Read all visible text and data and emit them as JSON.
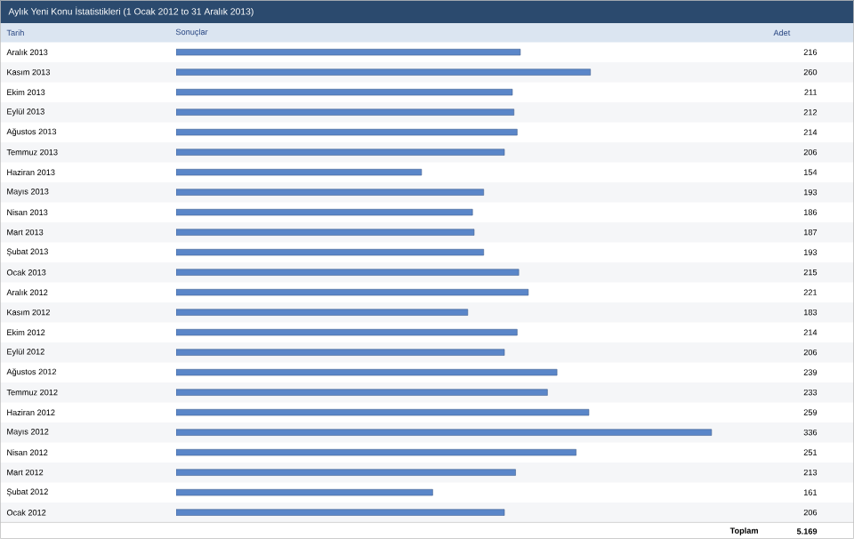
{
  "chart_data": {
    "type": "bar",
    "orientation": "horizontal",
    "title": "Aylık Yeni Konu İstatistikleri (1 Ocak 2012 to 31 Aralık 2013)",
    "annotations": [
      "Tarih",
      "Sonuçlar",
      "Adet",
      "Toplam",
      "5.169"
    ],
    "categories": [
      "Aralık 2013",
      "Kasım 2013",
      "Ekim 2013",
      "Eylül 2013",
      "Ağustos 2013",
      "Temmuz 2013",
      "Haziran 2013",
      "Mayıs 2013",
      "Nisan 2013",
      "Mart 2013",
      "Şubat 2013",
      "Ocak 2013",
      "Aralık 2012",
      "Kasım 2012",
      "Ekim 2012",
      "Eylül 2012",
      "Ağustos 2012",
      "Temmuz 2012",
      "Haziran 2012",
      "Mayıs 2012",
      "Nisan 2012",
      "Mart 2012",
      "Şubat 2012",
      "Ocak 2012"
    ],
    "values": [
      216,
      260,
      211,
      212,
      214,
      206,
      154,
      193,
      186,
      187,
      193,
      215,
      221,
      183,
      214,
      206,
      239,
      233,
      259,
      336,
      251,
      213,
      161,
      206
    ],
    "color": "#5a86c9",
    "data_labels": true,
    "tick_labels": "y"
  }
}
